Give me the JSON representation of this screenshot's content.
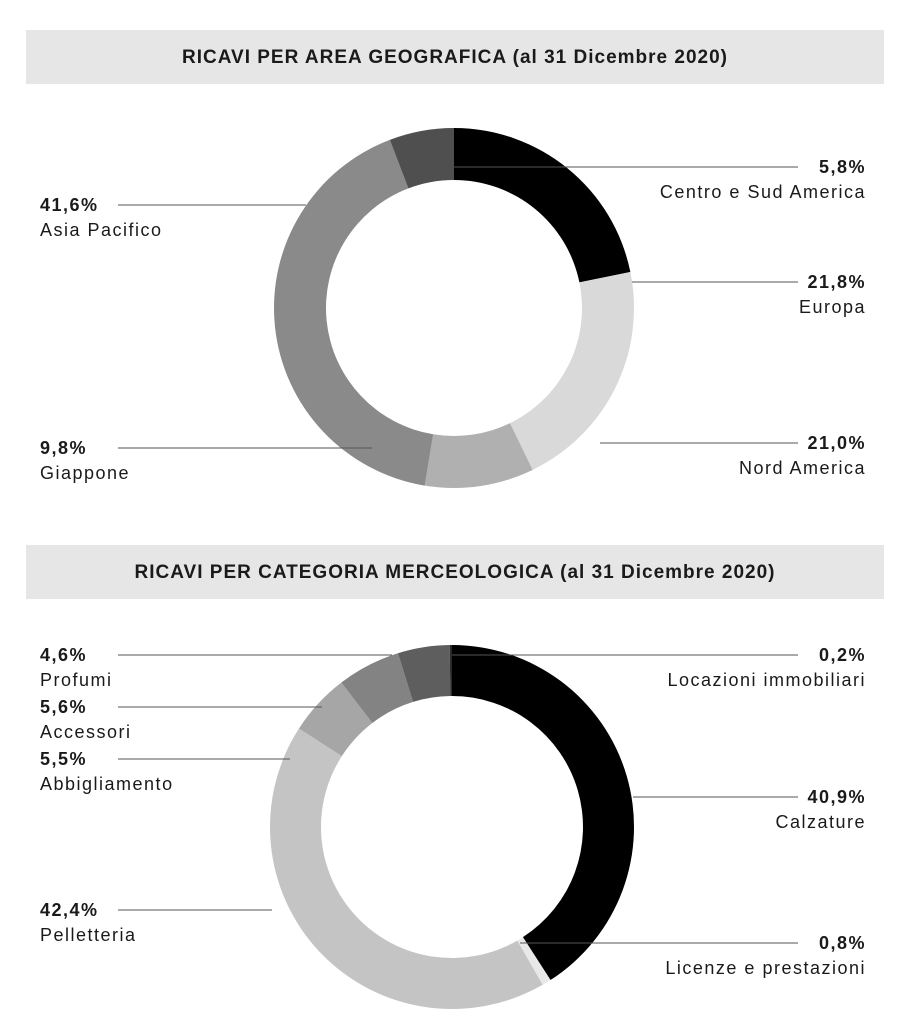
{
  "chart_data": [
    {
      "type": "pie",
      "title": "RICAVI PER AREA GEOGRAFICA (al 31 Dicembre 2020)",
      "slices": [
        {
          "label": "Centro e Sud America",
          "value": 5.8,
          "display": "5,8%",
          "color": "#4f4f4f"
        },
        {
          "label": "Europa",
          "value": 21.8,
          "display": "21,8%",
          "color": "#000000"
        },
        {
          "label": "Nord America",
          "value": 21.0,
          "display": "21,0%",
          "color": "#d9d9d9"
        },
        {
          "label": "Giappone",
          "value": 9.8,
          "display": "9,8%",
          "color": "#b0b0b0"
        },
        {
          "label": "Asia Pacifico",
          "value": 41.6,
          "display": "41,6%",
          "color": "#8a8a8a"
        }
      ],
      "draw_order": [
        "Europa",
        "Nord America",
        "Giappone",
        "Asia Pacifico",
        "Centro e Sud America"
      ]
    },
    {
      "type": "pie",
      "title": "RICAVI PER CATEGORIA MERCEOLOGICA (al 31 Dicembre 2020)",
      "slices": [
        {
          "label": "Locazioni immobiliari",
          "value": 0.2,
          "display": "0,2%",
          "color": "#2a2a2a"
        },
        {
          "label": "Calzature",
          "value": 40.9,
          "display": "40,9%",
          "color": "#000000"
        },
        {
          "label": "Licenze e prestazioni",
          "value": 0.8,
          "display": "0,8%",
          "color": "#e8e8e8"
        },
        {
          "label": "Pelletteria",
          "value": 42.4,
          "display": "42,4%",
          "color": "#c4c4c4"
        },
        {
          "label": "Abbigliamento",
          "value": 5.5,
          "display": "5,5%",
          "color": "#a6a6a6"
        },
        {
          "label": "Accessori",
          "value": 5.6,
          "display": "5,6%",
          "color": "#838383"
        },
        {
          "label": "Profumi",
          "value": 4.6,
          "display": "4,6%",
          "color": "#5e5e5e"
        }
      ],
      "draw_order": [
        "Calzature",
        "Licenze e prestazioni",
        "Pelletteria",
        "Abbigliamento",
        "Accessori",
        "Profumi",
        "Locazioni immobiliari"
      ]
    }
  ]
}
